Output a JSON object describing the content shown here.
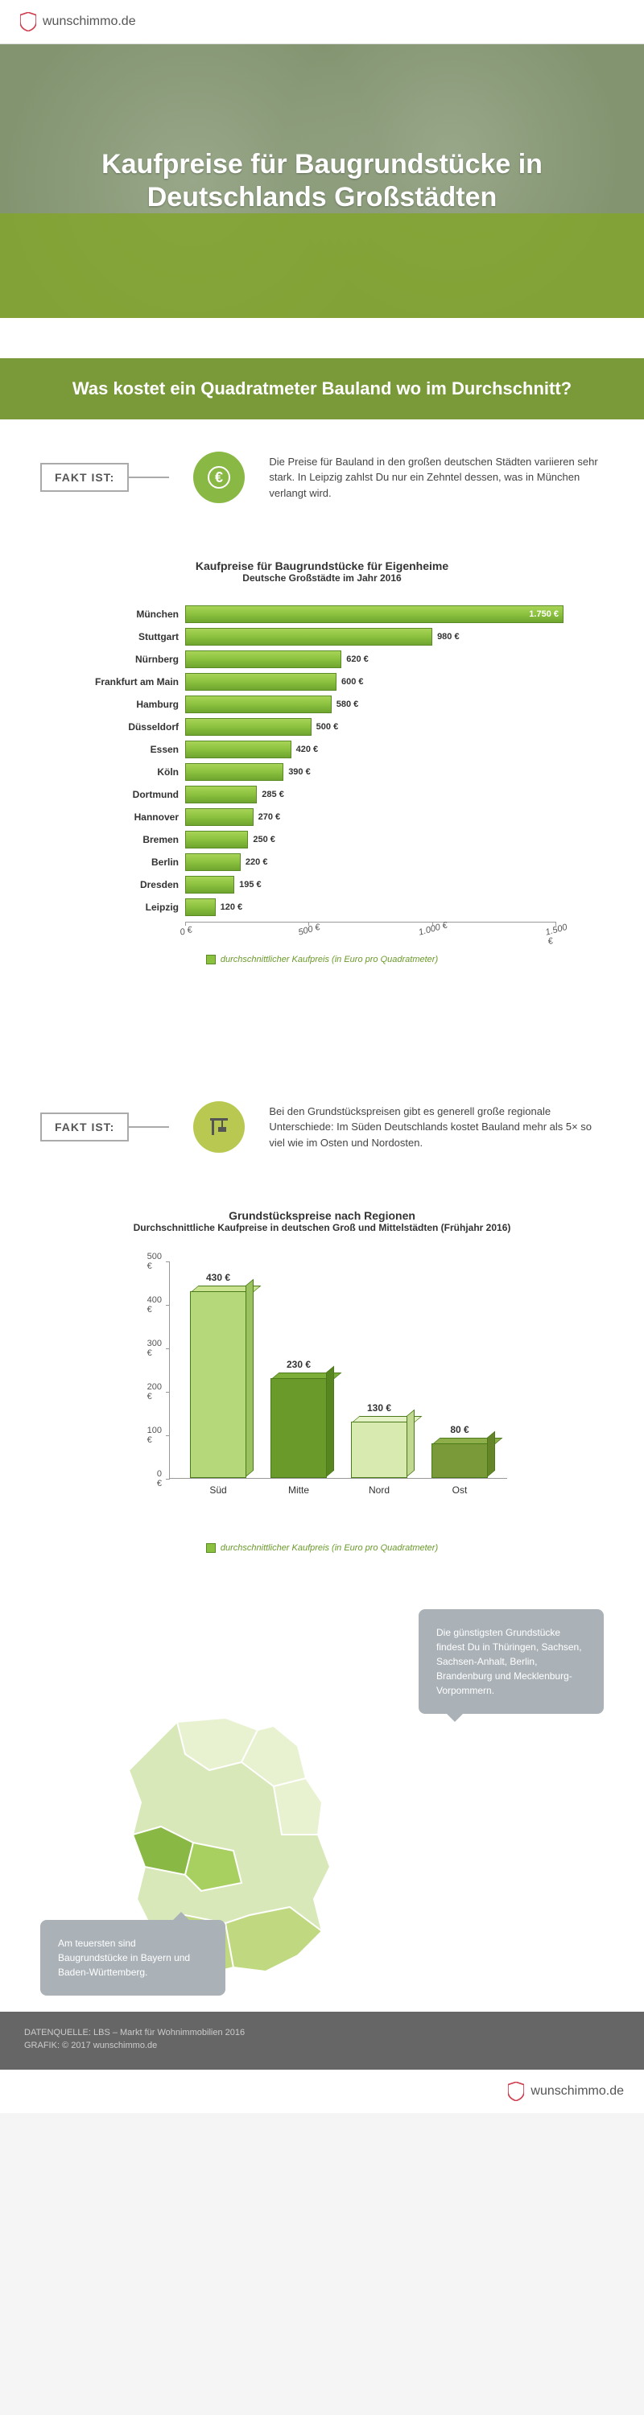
{
  "brand": "wunschimmo.de",
  "hero": {
    "title_line1": "Kaufpreise für Baugrundstücke in",
    "title_line2": "Deutschlands Großstädten"
  },
  "section1_title": "Was kostet ein Quadratmeter Bauland wo im Durchschnitt?",
  "fakt1": {
    "label": "FAKT IST:",
    "text": "Die Preise für Bauland in den großen deutschen Städten variieren sehr stark. In Leipzig zahlst Du nur ein Zehntel dessen, was in München verlangt wird."
  },
  "chart1": {
    "title": "Kaufpreise für Baugrundstücke für Eigenheime",
    "subtitle": "Deutsche Großstädte im Jahr 2016",
    "max": 1500,
    "ticks": [
      0,
      500,
      1000,
      1500
    ],
    "tick_labels": [
      "0 €",
      "500 €",
      "1.000 €",
      "1.500 €"
    ],
    "legend": "durchschnittlicher Kaufpreis (in Euro pro Quadratmeter)",
    "bars": [
      {
        "label": "München",
        "value": 1750,
        "display": "1.750 €"
      },
      {
        "label": "Stuttgart",
        "value": 980,
        "display": "980 €"
      },
      {
        "label": "Nürnberg",
        "value": 620,
        "display": "620 €"
      },
      {
        "label": "Frankfurt am Main",
        "value": 600,
        "display": "600 €"
      },
      {
        "label": "Hamburg",
        "value": 580,
        "display": "580 €"
      },
      {
        "label": "Düsseldorf",
        "value": 500,
        "display": "500 €"
      },
      {
        "label": "Essen",
        "value": 420,
        "display": "420 €"
      },
      {
        "label": "Köln",
        "value": 390,
        "display": "390 €"
      },
      {
        "label": "Dortmund",
        "value": 285,
        "display": "285 €"
      },
      {
        "label": "Hannover",
        "value": 270,
        "display": "270 €"
      },
      {
        "label": "Bremen",
        "value": 250,
        "display": "250 €"
      },
      {
        "label": "Berlin",
        "value": 220,
        "display": "220 €"
      },
      {
        "label": "Dresden",
        "value": 195,
        "display": "195 €"
      },
      {
        "label": "Leipzig",
        "value": 120,
        "display": "120 €"
      }
    ]
  },
  "fakt2": {
    "label": "FAKT IST:",
    "text": "Bei den Grundstückspreisen gibt es generell große regionale Unterschiede: Im Süden Deutschlands kostet Bauland mehr als 5× so viel wie im Osten und Nordosten."
  },
  "chart2": {
    "title": "Grundstückspreise nach Regionen",
    "subtitle": "Durchschnittliche Kaufpreise in deutschen Groß und Mittelstädten (Frühjahr 2016)",
    "ymax": 500,
    "yticks": [
      0,
      100,
      200,
      300,
      400,
      500
    ],
    "ytick_labels": [
      "0 €",
      "100 €",
      "200 €",
      "300 €",
      "400 €",
      "500 €"
    ],
    "legend": "durchschnittlicher Kaufpreis (in Euro pro Quadratmeter)",
    "bars": [
      {
        "label": "Süd",
        "value": 430,
        "display": "430 €",
        "color": "#b5d87a",
        "color_top": "#c8e290",
        "color_side": "#9ac25f"
      },
      {
        "label": "Mitte",
        "value": 230,
        "display": "230 €",
        "color": "#6a9a2a",
        "color_top": "#7eae3a",
        "color_side": "#578520"
      },
      {
        "label": "Nord",
        "value": 130,
        "display": "130 €",
        "color": "#d8eab0",
        "color_top": "#e5f2c8",
        "color_side": "#c0d890"
      },
      {
        "label": "Ost",
        "value": 80,
        "display": "80 €",
        "color": "#7a9a3a",
        "color_top": "#8eae4a",
        "color_side": "#658528"
      }
    ]
  },
  "map": {
    "bubble1": "Die günstigsten Grundstücke findest Du in Thüringen, Sachsen, Sachsen-Anhalt, Berlin, Brandenburg und Mecklenburg-Vorpommern.",
    "bubble2": "Am teuersten sind Baugrundstücke in Bayern und Baden-Württemberg."
  },
  "footer": {
    "source": "DATENQUELLE: LBS – Markt für Wohnimmobilien 2016",
    "credit": "GRAFIK: © 2017 wunschimmo.de"
  },
  "colors": {
    "brand_green": "#7a9a3a",
    "bar_green": "#8bc13e",
    "grey": "#aab2b8"
  }
}
